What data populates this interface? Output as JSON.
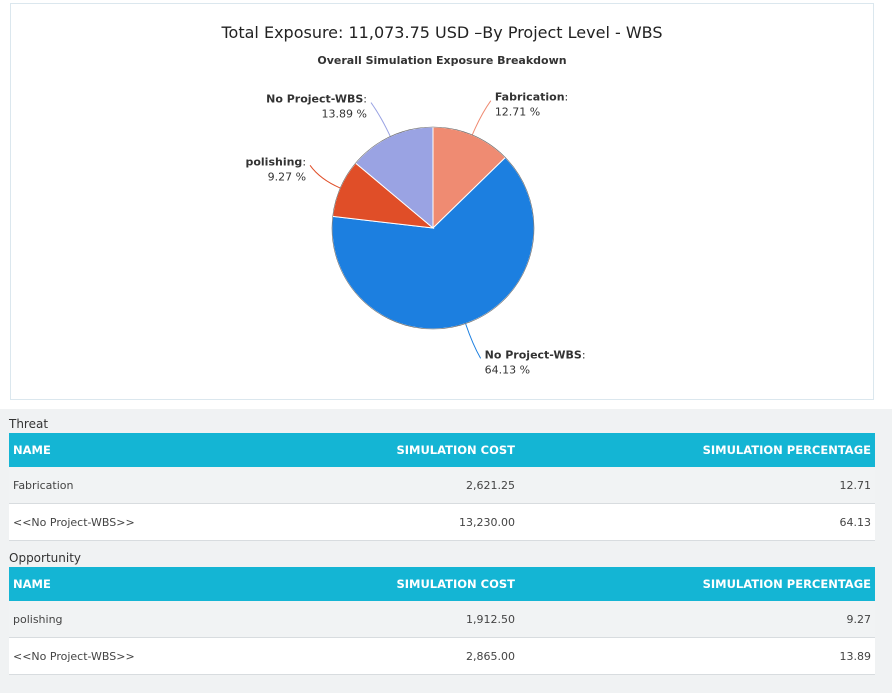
{
  "chart_data": {
    "type": "pie",
    "title": "Total Exposure: 11,073.75 USD –By Project Level - WBS",
    "subtitle": "Overall Simulation Exposure Breakdown",
    "slices": [
      {
        "name": "Fabrication",
        "value": 12.71,
        "label": "12.71 %",
        "color": "#ef8b72"
      },
      {
        "name": "No Project-WBS",
        "value": 64.13,
        "label": "64.13 %",
        "color": "#1c7fe0"
      },
      {
        "name": "polishing",
        "value": 9.27,
        "label": "9.27 %",
        "color": "#e04e28"
      },
      {
        "name": "No Project-WBS",
        "value": 13.89,
        "label": "13.89 %",
        "color": "#9aa3e3"
      }
    ]
  },
  "threat": {
    "label": "Threat",
    "headers": {
      "name": "NAME",
      "cost": "SIMULATION COST",
      "pct": "SIMULATION PERCENTAGE"
    },
    "rows": [
      {
        "name": "Fabrication",
        "cost": "2,621.25",
        "pct": "12.71"
      },
      {
        "name": "<<No Project-WBS>>",
        "cost": "13,230.00",
        "pct": "64.13"
      }
    ]
  },
  "opportunity": {
    "label": "Opportunity",
    "headers": {
      "name": "NAME",
      "cost": "SIMULATION COST",
      "pct": "SIMULATION PERCENTAGE"
    },
    "rows": [
      {
        "name": "polishing",
        "cost": "1,912.50",
        "pct": "9.27"
      },
      {
        "name": "<<No Project-WBS>>",
        "cost": "2,865.00",
        "pct": "13.89"
      }
    ]
  }
}
